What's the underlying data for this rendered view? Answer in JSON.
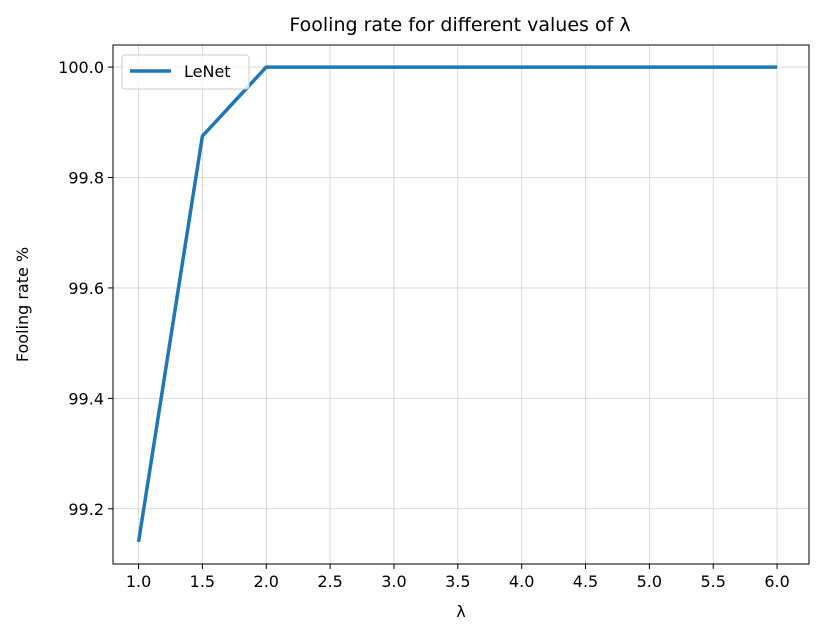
{
  "chart_data": {
    "type": "line",
    "title": "Fooling rate for different values of λ",
    "xlabel": "λ",
    "ylabel": "Fooling rate %",
    "xlim": [
      0.8,
      6.25
    ],
    "ylim": [
      99.1,
      100.04
    ],
    "xticks": [
      1.0,
      1.5,
      2.0,
      2.5,
      3.0,
      3.5,
      4.0,
      4.5,
      5.0,
      5.5,
      6.0
    ],
    "xtick_labels": [
      "1.0",
      "1.5",
      "2.0",
      "2.5",
      "3.0",
      "3.5",
      "4.0",
      "4.5",
      "5.0",
      "5.5",
      "6.0"
    ],
    "yticks": [
      99.2,
      99.4,
      99.6,
      99.8,
      100.0
    ],
    "ytick_labels": [
      "99.2",
      "99.4",
      "99.6",
      "99.8",
      "100.0"
    ],
    "grid": true,
    "legend_position": "upper-left",
    "series": [
      {
        "name": "LeNet",
        "color": "#1f77b4",
        "x": [
          1.0,
          1.5,
          2.0,
          2.5,
          3.0,
          3.5,
          4.0,
          4.5,
          5.0,
          5.5,
          6.0
        ],
        "y": [
          99.14,
          99.875,
          100.0,
          100.0,
          100.0,
          100.0,
          100.0,
          100.0,
          100.0,
          100.0,
          100.0
        ]
      }
    ]
  }
}
